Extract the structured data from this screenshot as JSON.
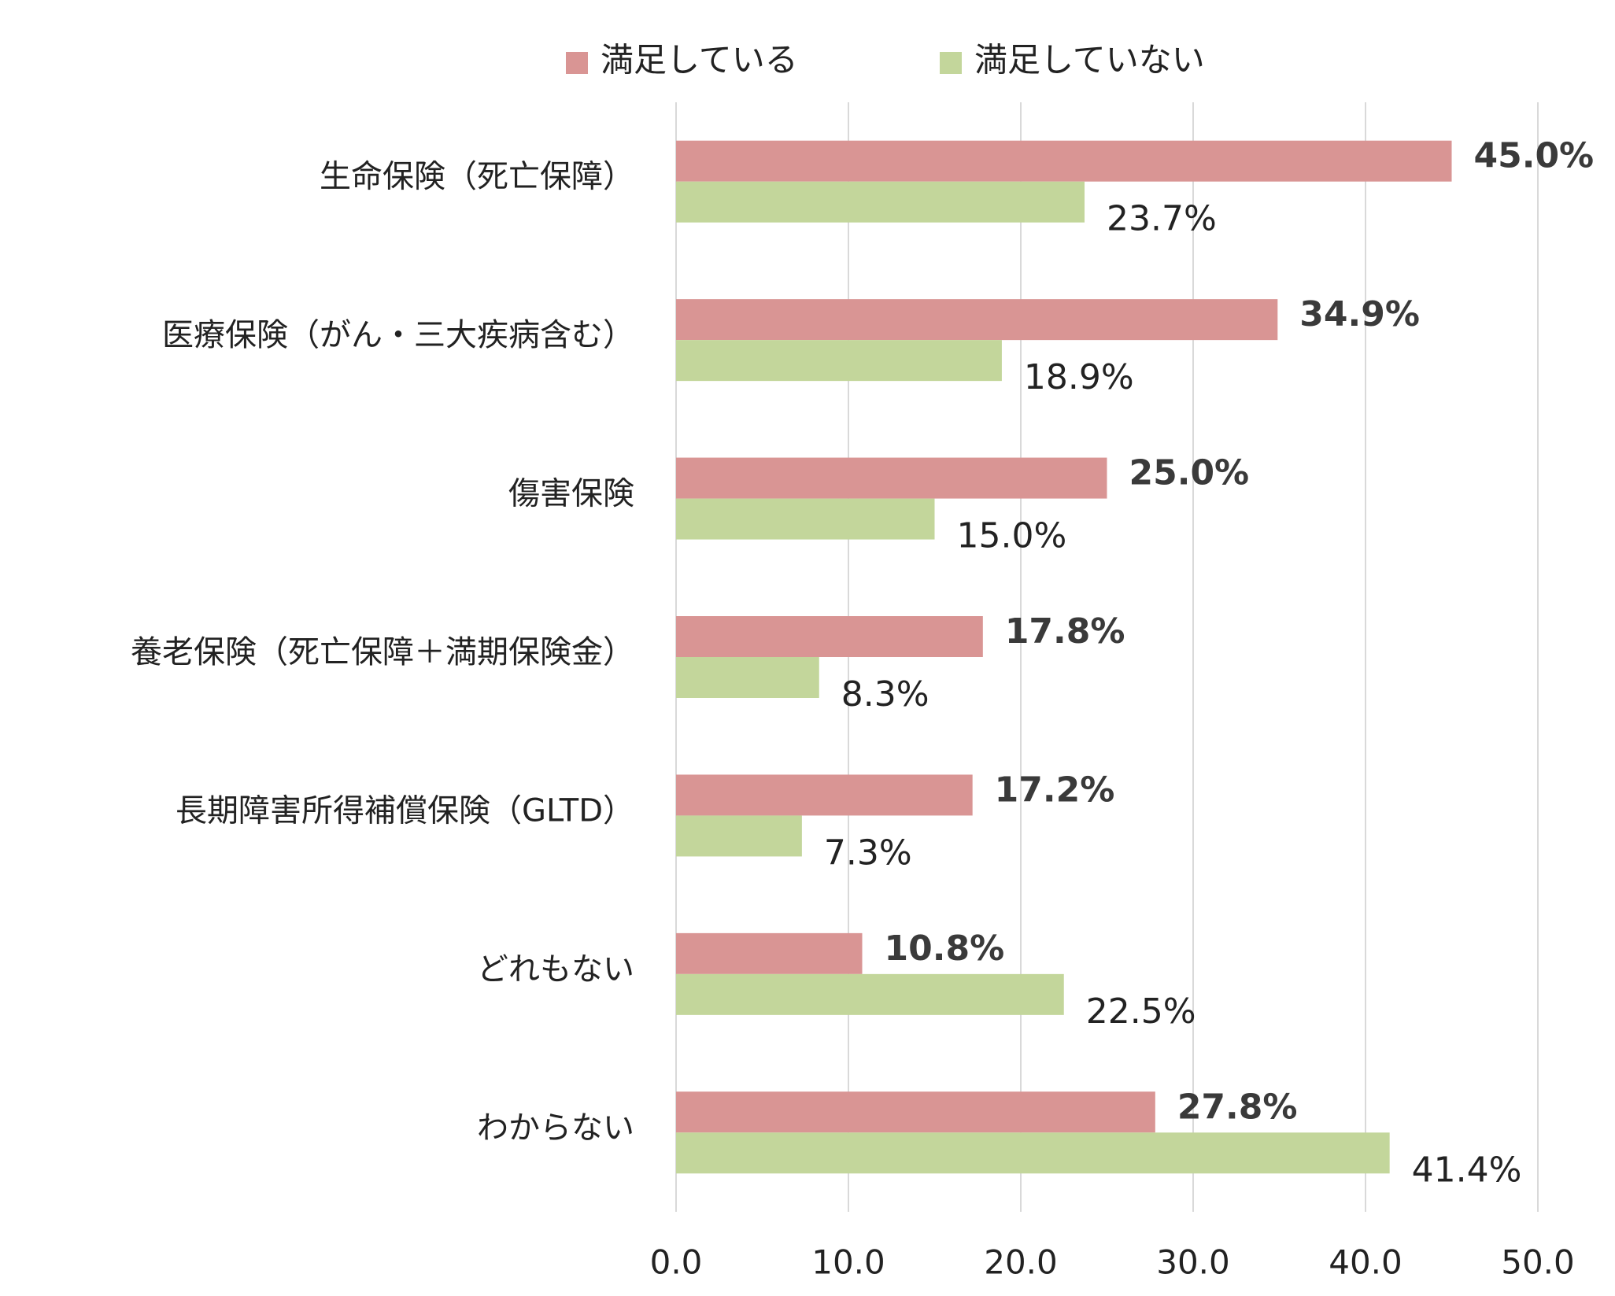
{
  "chart_data": {
    "type": "bar",
    "orientation": "horizontal",
    "categories": [
      "生命保険（死亡保障）",
      "医療保険（がん・三大疾病含む）",
      "傷害保険",
      "養老保険（死亡保障＋満期保険金）",
      "長期障害所得補償保険（GLTD）",
      "どれもない",
      "わからない"
    ],
    "series": [
      {
        "name": "満足している",
        "color": "#d99594",
        "values": [
          45.0,
          34.9,
          25.0,
          17.8,
          17.2,
          10.8,
          27.8
        ],
        "value_labels": [
          "45.0%",
          "34.9%",
          "25.0%",
          "17.8%",
          "17.2%",
          "10.8%",
          "27.8%"
        ]
      },
      {
        "name": "満足していない",
        "color": "#c3d69b",
        "values": [
          23.7,
          18.9,
          15.0,
          8.3,
          7.3,
          22.5,
          41.4
        ],
        "value_labels": [
          "23.7%",
          "18.9%",
          "15.0%",
          "8.3%",
          "7.3%",
          "22.5%",
          "41.4%"
        ]
      }
    ],
    "xlim": [
      0,
      50
    ],
    "xticks": [
      {
        "value": 0,
        "label": "0.0"
      },
      {
        "value": 10,
        "label": "10.0"
      },
      {
        "value": 20,
        "label": "20.0"
      },
      {
        "value": 30,
        "label": "30.0"
      },
      {
        "value": 40,
        "label": "40.0"
      },
      {
        "value": 50,
        "label": "50.0"
      }
    ],
    "grid": true,
    "legend": "top"
  }
}
